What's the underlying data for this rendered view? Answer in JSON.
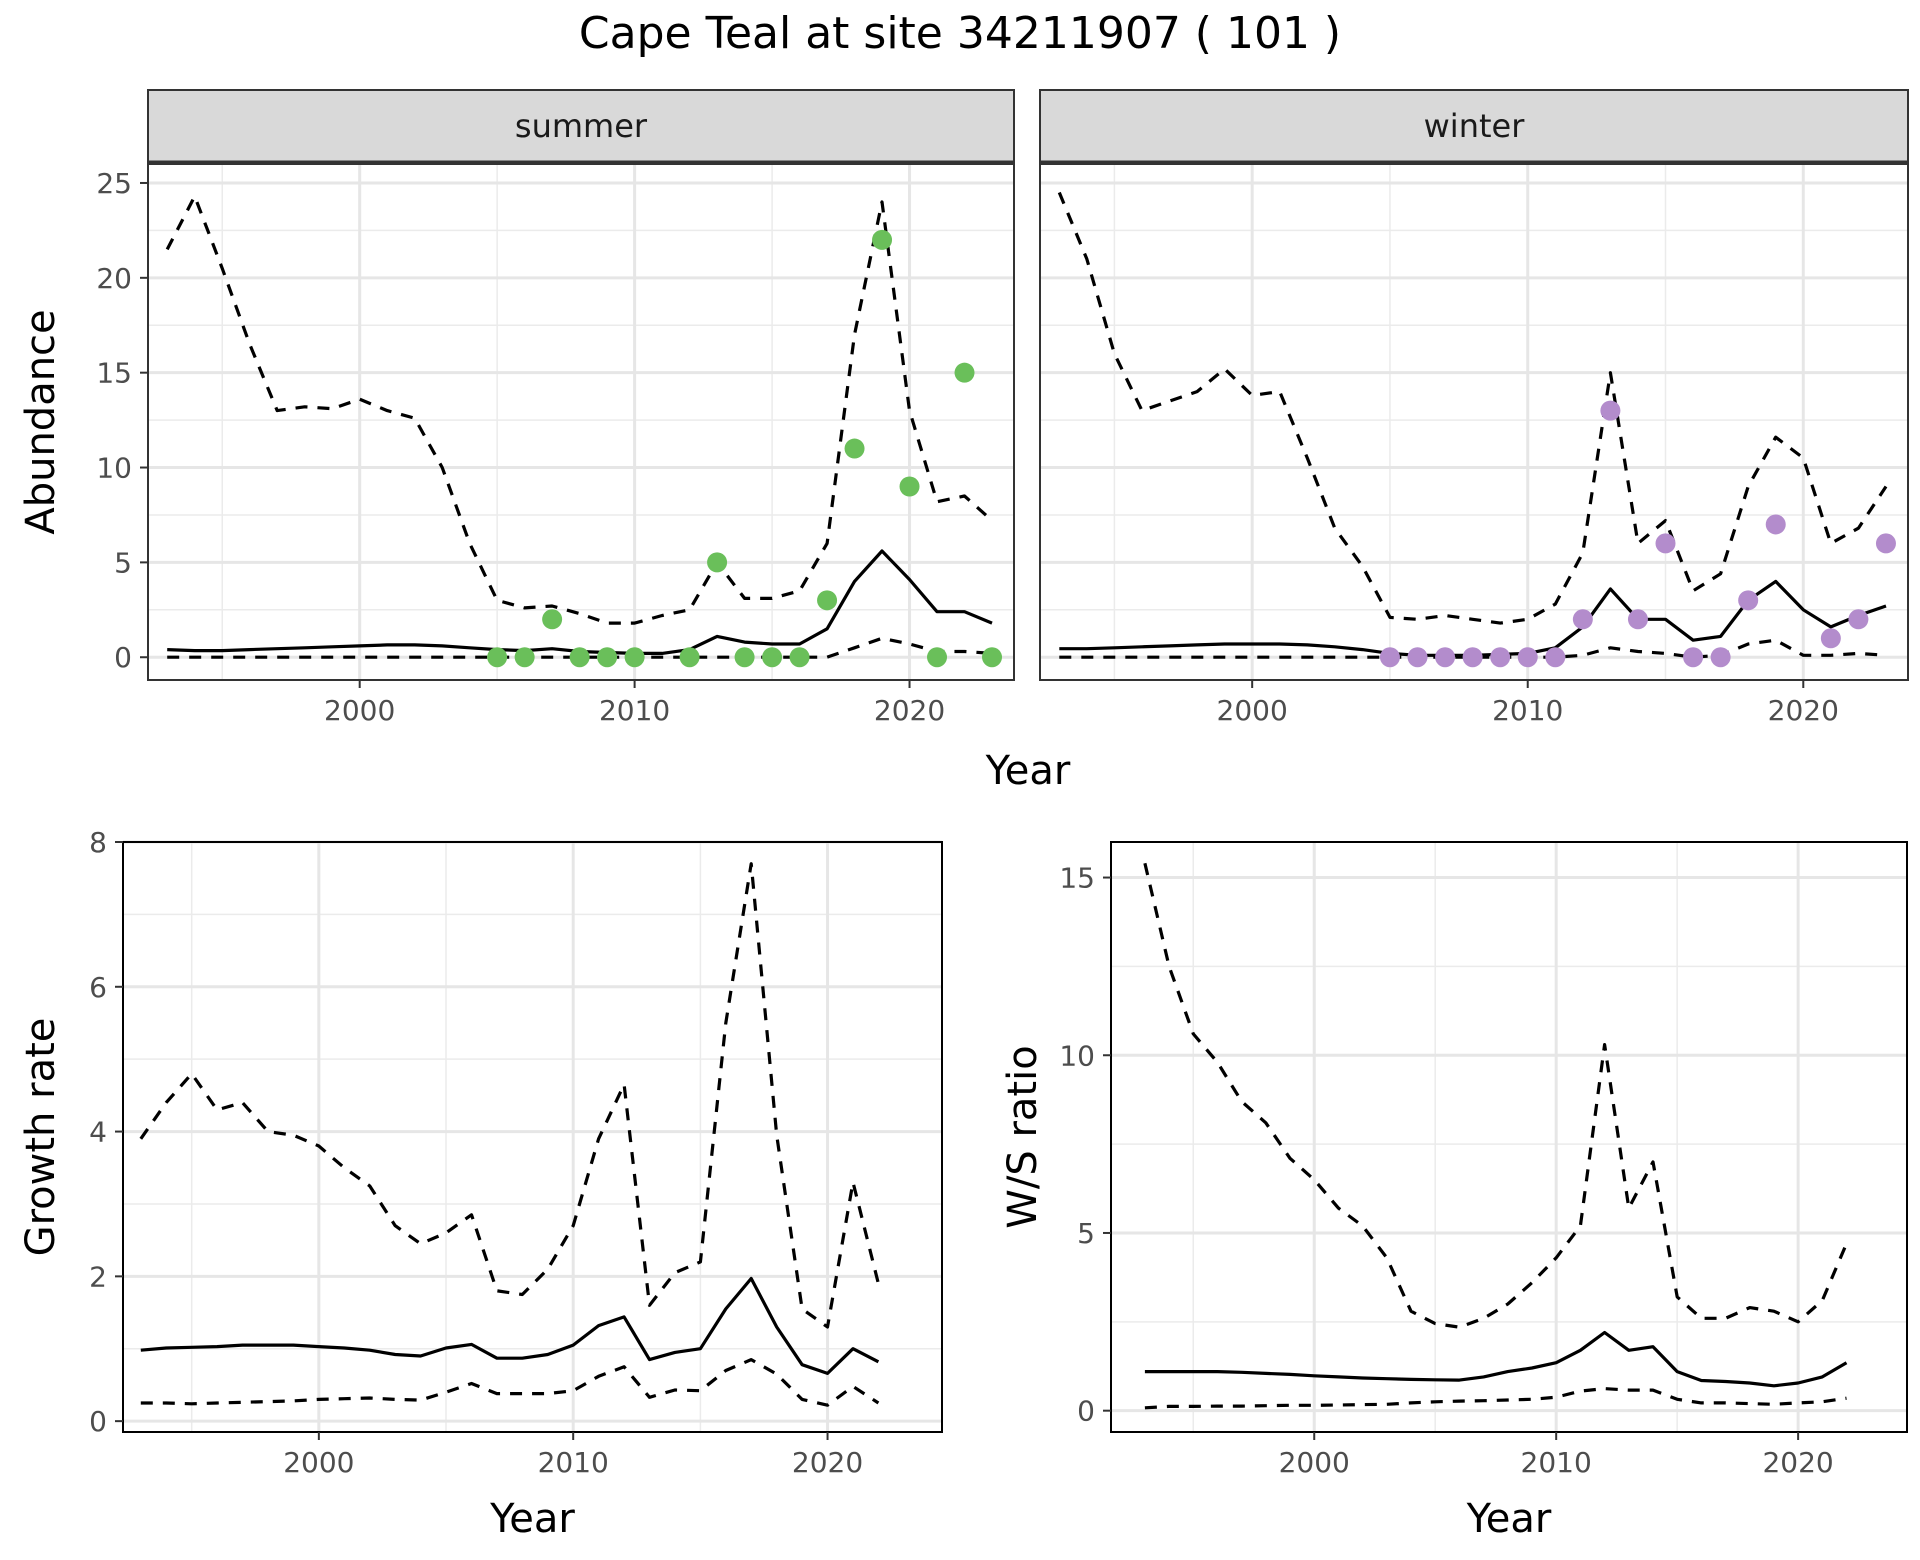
{
  "title": "Cape Teal at site 34211907 ( 101 )",
  "chart_data": [
    {
      "type": "line",
      "facet": "summer",
      "xlabel": "Year",
      "ylabel": "Abundance",
      "xlim": [
        1992.3,
        2023.8
      ],
      "ylim": [
        -1.2,
        26
      ],
      "x_ticks": [
        2000,
        2010,
        2020
      ],
      "y_ticks": [
        0,
        5,
        10,
        15,
        20,
        25
      ],
      "grid": true,
      "point_color": "#6abf5a",
      "series": [
        {
          "role": "mean",
          "style": "solid",
          "x": [
            1993,
            1994,
            1995,
            1996,
            1997,
            1998,
            1999,
            2000,
            2001,
            2002,
            2003,
            2004,
            2005,
            2006,
            2007,
            2008,
            2009,
            2010,
            2011,
            2012,
            2013,
            2014,
            2015,
            2016,
            2017,
            2018,
            2019,
            2020,
            2021,
            2022,
            2023
          ],
          "y": [
            0.4,
            0.35,
            0.35,
            0.4,
            0.45,
            0.5,
            0.55,
            0.6,
            0.65,
            0.65,
            0.6,
            0.5,
            0.4,
            0.35,
            0.45,
            0.3,
            0.25,
            0.2,
            0.2,
            0.4,
            1.1,
            0.8,
            0.7,
            0.7,
            1.5,
            4.0,
            5.6,
            4.1,
            2.4,
            2.4,
            1.8
          ]
        },
        {
          "role": "upper",
          "style": "dashed",
          "x": [
            1993,
            1994,
            1995,
            1996,
            1997,
            1998,
            1999,
            2000,
            2001,
            2002,
            2003,
            2004,
            2005,
            2006,
            2007,
            2008,
            2009,
            2010,
            2011,
            2012,
            2013,
            2014,
            2015,
            2016,
            2017,
            2018,
            2019,
            2020,
            2021,
            2022,
            2023
          ],
          "y": [
            21.5,
            24.3,
            20.5,
            16.5,
            13.0,
            13.2,
            13.1,
            13.6,
            13.0,
            12.6,
            10.0,
            6.0,
            3.0,
            2.6,
            2.7,
            2.3,
            1.8,
            1.8,
            2.2,
            2.5,
            5.0,
            3.1,
            3.1,
            3.5,
            6.0,
            17.0,
            24.0,
            13.0,
            8.2,
            8.5,
            7.2
          ]
        },
        {
          "role": "lower",
          "style": "dashed",
          "x": [
            1993,
            1994,
            1995,
            1996,
            1997,
            1998,
            1999,
            2000,
            2001,
            2002,
            2003,
            2004,
            2005,
            2006,
            2007,
            2008,
            2009,
            2010,
            2011,
            2012,
            2013,
            2014,
            2015,
            2016,
            2017,
            2018,
            2019,
            2020,
            2021,
            2022,
            2023
          ],
          "y": [
            0,
            0,
            0,
            0,
            0,
            0,
            0,
            0,
            0,
            0,
            0,
            0,
            0,
            0,
            0,
            0,
            0,
            0,
            0,
            0,
            0,
            0,
            0,
            0,
            0,
            0.5,
            1.0,
            0.7,
            0.3,
            0.3,
            0.2
          ]
        },
        {
          "role": "observed",
          "style": "points",
          "x": [
            2005,
            2006,
            2007,
            2008,
            2009,
            2010,
            2012,
            2013,
            2014,
            2015,
            2016,
            2017,
            2018,
            2019,
            2020,
            2021,
            2022,
            2023
          ],
          "y": [
            0,
            0,
            2,
            0,
            0,
            0,
            0,
            5,
            0,
            0,
            0,
            3,
            11,
            22,
            9,
            0,
            15,
            0
          ]
        }
      ]
    },
    {
      "type": "line",
      "facet": "winter",
      "xlabel": "Year",
      "ylabel": "Abundance",
      "xlim": [
        1992.3,
        2023.8
      ],
      "ylim": [
        -1.2,
        26
      ],
      "x_ticks": [
        2000,
        2010,
        2020
      ],
      "y_ticks": [
        0,
        5,
        10,
        15,
        20,
        25
      ],
      "grid": true,
      "point_color": "#b38ccc",
      "series": [
        {
          "role": "mean",
          "style": "solid",
          "x": [
            1993,
            1994,
            1995,
            1996,
            1997,
            1998,
            1999,
            2000,
            2001,
            2002,
            2003,
            2004,
            2005,
            2006,
            2007,
            2008,
            2009,
            2010,
            2011,
            2012,
            2013,
            2014,
            2015,
            2016,
            2017,
            2018,
            2019,
            2020,
            2021,
            2022,
            2023
          ],
          "y": [
            0.45,
            0.45,
            0.5,
            0.55,
            0.6,
            0.65,
            0.7,
            0.7,
            0.7,
            0.65,
            0.55,
            0.4,
            0.2,
            0.1,
            0.1,
            0.1,
            0.15,
            0.2,
            0.5,
            1.6,
            3.6,
            2.0,
            2.0,
            0.9,
            1.1,
            3.0,
            4.0,
            2.5,
            1.6,
            2.2,
            2.7
          ]
        },
        {
          "role": "upper",
          "style": "dashed",
          "x": [
            1993,
            1994,
            1995,
            1996,
            1997,
            1998,
            1999,
            2000,
            2001,
            2002,
            2003,
            2004,
            2005,
            2006,
            2007,
            2008,
            2009,
            2010,
            2011,
            2012,
            2013,
            2014,
            2015,
            2016,
            2017,
            2018,
            2019,
            2020,
            2021,
            2022,
            2023
          ],
          "y": [
            24.5,
            21.0,
            16.0,
            13.0,
            13.5,
            14.0,
            15.2,
            13.8,
            14.0,
            10.5,
            6.8,
            4.8,
            2.1,
            2.0,
            2.2,
            2.0,
            1.8,
            2.0,
            2.8,
            5.5,
            15.0,
            6.0,
            7.2,
            3.5,
            4.4,
            9.0,
            11.6,
            10.5,
            6.0,
            6.8,
            9.0
          ]
        },
        {
          "role": "lower",
          "style": "dashed",
          "x": [
            1993,
            1994,
            1995,
            1996,
            1997,
            1998,
            1999,
            2000,
            2001,
            2002,
            2003,
            2004,
            2005,
            2006,
            2007,
            2008,
            2009,
            2010,
            2011,
            2012,
            2013,
            2014,
            2015,
            2016,
            2017,
            2018,
            2019,
            2020,
            2021,
            2022,
            2023
          ],
          "y": [
            0,
            0,
            0,
            0,
            0,
            0,
            0,
            0,
            0,
            0,
            0,
            0,
            0,
            0,
            0,
            0,
            0,
            0,
            0,
            0.1,
            0.5,
            0.3,
            0.2,
            0,
            0.1,
            0.7,
            0.9,
            0.1,
            0.1,
            0.2,
            0.1
          ]
        },
        {
          "role": "observed",
          "style": "points",
          "x": [
            2005,
            2006,
            2007,
            2008,
            2009,
            2010,
            2011,
            2012,
            2013,
            2014,
            2015,
            2016,
            2017,
            2018,
            2019,
            2021,
            2022,
            2023
          ],
          "y": [
            0,
            0,
            0,
            0,
            0,
            0,
            0,
            2,
            13,
            2,
            6,
            0,
            0,
            3,
            7,
            1,
            2,
            6
          ]
        }
      ]
    },
    {
      "type": "line",
      "xlabel": "Year",
      "ylabel": "Growth rate",
      "xlim": [
        1992.3,
        2024.5
      ],
      "ylim": [
        -0.15,
        8.0
      ],
      "x_ticks": [
        2000,
        2010,
        2020
      ],
      "y_ticks": [
        0,
        2,
        4,
        6,
        8
      ],
      "grid": true,
      "series": [
        {
          "role": "mean",
          "style": "solid",
          "x": [
            1993,
            1994,
            1995,
            1996,
            1997,
            1998,
            1999,
            2000,
            2001,
            2002,
            2003,
            2004,
            2005,
            2006,
            2007,
            2008,
            2009,
            2010,
            2011,
            2012,
            2013,
            2014,
            2015,
            2016,
            2017,
            2018,
            2019,
            2020,
            2021,
            2022
          ],
          "y": [
            0.98,
            1.01,
            1.02,
            1.03,
            1.05,
            1.05,
            1.05,
            1.03,
            1.01,
            0.98,
            0.92,
            0.9,
            1.01,
            1.06,
            0.87,
            0.87,
            0.92,
            1.05,
            1.32,
            1.44,
            0.85,
            0.95,
            1.0,
            1.55,
            1.97,
            1.3,
            0.78,
            0.66,
            1.0,
            0.82
          ]
        },
        {
          "role": "upper",
          "style": "dashed",
          "x": [
            1993,
            1994,
            1995,
            1996,
            1997,
            1998,
            1999,
            2000,
            2001,
            2002,
            2003,
            2004,
            2005,
            2006,
            2007,
            2008,
            2009,
            2010,
            2011,
            2012,
            2013,
            2014,
            2015,
            2016,
            2017,
            2018,
            2019,
            2020,
            2021,
            2022
          ],
          "y": [
            3.9,
            4.4,
            4.8,
            4.3,
            4.4,
            4.0,
            3.95,
            3.8,
            3.5,
            3.25,
            2.7,
            2.45,
            2.6,
            2.85,
            1.8,
            1.75,
            2.1,
            2.7,
            3.9,
            4.65,
            1.6,
            2.05,
            2.2,
            5.5,
            7.7,
            3.95,
            1.55,
            1.3,
            3.3,
            1.9
          ]
        },
        {
          "role": "lower",
          "style": "dashed",
          "x": [
            1993,
            1994,
            1995,
            1996,
            1997,
            1998,
            1999,
            2000,
            2001,
            2002,
            2003,
            2004,
            2005,
            2006,
            2007,
            2008,
            2009,
            2010,
            2011,
            2012,
            2013,
            2014,
            2015,
            2016,
            2017,
            2018,
            2019,
            2020,
            2021,
            2022
          ],
          "y": [
            0.25,
            0.25,
            0.24,
            0.25,
            0.26,
            0.27,
            0.28,
            0.3,
            0.31,
            0.32,
            0.3,
            0.29,
            0.4,
            0.52,
            0.38,
            0.38,
            0.38,
            0.42,
            0.62,
            0.75,
            0.33,
            0.43,
            0.42,
            0.7,
            0.85,
            0.65,
            0.3,
            0.22,
            0.48,
            0.25
          ]
        }
      ]
    },
    {
      "type": "line",
      "xlabel": "Year",
      "ylabel": "W/S ratio",
      "xlim": [
        1991.6,
        2024.5
      ],
      "ylim": [
        -0.6,
        16.0
      ],
      "x_ticks": [
        2000,
        2010,
        2020
      ],
      "y_ticks": [
        0,
        5,
        10,
        15
      ],
      "grid": true,
      "series": [
        {
          "role": "mean",
          "style": "solid",
          "x": [
            1993,
            1994,
            1995,
            1996,
            1997,
            1998,
            1999,
            2000,
            2001,
            2002,
            2003,
            2004,
            2005,
            2006,
            2007,
            2008,
            2009,
            2010,
            2011,
            2012,
            2013,
            2014,
            2015,
            2016,
            2017,
            2018,
            2019,
            2020,
            2021,
            2022
          ],
          "y": [
            1.1,
            1.1,
            1.1,
            1.1,
            1.08,
            1.05,
            1.02,
            0.98,
            0.95,
            0.92,
            0.9,
            0.88,
            0.87,
            0.86,
            0.95,
            1.1,
            1.2,
            1.35,
            1.7,
            2.2,
            1.7,
            1.8,
            1.1,
            0.85,
            0.82,
            0.78,
            0.7,
            0.78,
            0.95,
            1.35
          ]
        },
        {
          "role": "upper",
          "style": "dashed",
          "x": [
            1993,
            1994,
            1995,
            1996,
            1997,
            1998,
            1999,
            2000,
            2001,
            2002,
            2003,
            2004,
            2005,
            2006,
            2007,
            2008,
            2009,
            2010,
            2011,
            2012,
            2013,
            2014,
            2015,
            2016,
            2017,
            2018,
            2019,
            2020,
            2021,
            2022
          ],
          "y": [
            15.4,
            12.5,
            10.6,
            9.8,
            8.7,
            8.1,
            7.1,
            6.5,
            5.7,
            5.2,
            4.3,
            2.8,
            2.45,
            2.35,
            2.6,
            3.0,
            3.6,
            4.3,
            5.2,
            10.3,
            5.7,
            7.0,
            3.2,
            2.6,
            2.6,
            2.9,
            2.8,
            2.5,
            3.1,
            4.7
          ]
        },
        {
          "role": "lower",
          "style": "dashed",
          "x": [
            1993,
            1994,
            1995,
            1996,
            1997,
            1998,
            1999,
            2000,
            2001,
            2002,
            2003,
            2004,
            2005,
            2006,
            2007,
            2008,
            2009,
            2010,
            2011,
            2012,
            2013,
            2014,
            2015,
            2016,
            2017,
            2018,
            2019,
            2020,
            2021,
            2022
          ],
          "y": [
            0.08,
            0.12,
            0.12,
            0.13,
            0.13,
            0.14,
            0.15,
            0.15,
            0.16,
            0.17,
            0.18,
            0.22,
            0.25,
            0.27,
            0.28,
            0.3,
            0.32,
            0.38,
            0.55,
            0.62,
            0.58,
            0.58,
            0.32,
            0.22,
            0.22,
            0.2,
            0.18,
            0.22,
            0.25,
            0.35
          ]
        }
      ]
    }
  ]
}
